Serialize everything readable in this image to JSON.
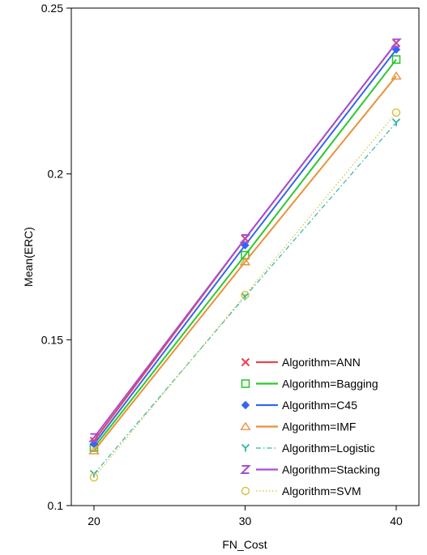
{
  "chart_data": {
    "type": "line",
    "title": "",
    "xlabel": "FN_Cost",
    "ylabel": "Mean(ERC)",
    "x": [
      20,
      30,
      40
    ],
    "xlim": [
      18.5,
      41.5
    ],
    "ylim": [
      0.1,
      0.25
    ],
    "x_ticks": [
      20,
      30,
      40
    ],
    "x_tick_labels": [
      "20",
      "30",
      "40"
    ],
    "y_ticks": [
      0.1,
      0.15,
      0.2,
      0.25
    ],
    "y_tick_labels": [
      "0.1",
      "0.15",
      "0.2",
      "0.25"
    ],
    "grid": false,
    "legend_position": "bottom-right",
    "series": [
      {
        "name": "Algorithm=ANN",
        "values": [
          0.1195,
          0.1805,
          0.2395
        ],
        "color": "#e8434f",
        "marker": "x",
        "dash": "solid"
      },
      {
        "name": "Algorithm=Bagging",
        "values": [
          0.1175,
          0.1755,
          0.2345
        ],
        "color": "#2dc82d",
        "marker": "square",
        "dash": "solid"
      },
      {
        "name": "Algorithm=C45",
        "values": [
          0.1185,
          0.1785,
          0.2375
        ],
        "color": "#3366ee",
        "marker": "diamond",
        "dash": "solid"
      },
      {
        "name": "Algorithm=IMF",
        "values": [
          0.1165,
          0.1735,
          0.2295
        ],
        "color": "#e8913a",
        "marker": "triangle",
        "dash": "solid"
      },
      {
        "name": "Algorithm=Logistic",
        "values": [
          0.1095,
          0.163,
          0.2155
        ],
        "color": "#2fb5a6",
        "marker": "y",
        "dash": "dashdot"
      },
      {
        "name": "Algorithm=Stacking",
        "values": [
          0.1205,
          0.1805,
          0.2395
        ],
        "color": "#a64ed4",
        "marker": "z",
        "dash": "solid"
      },
      {
        "name": "Algorithm=SVM",
        "values": [
          0.1085,
          0.1635,
          0.2185
        ],
        "color": "#d2c23a",
        "marker": "circle",
        "dash": "dotted"
      }
    ]
  }
}
